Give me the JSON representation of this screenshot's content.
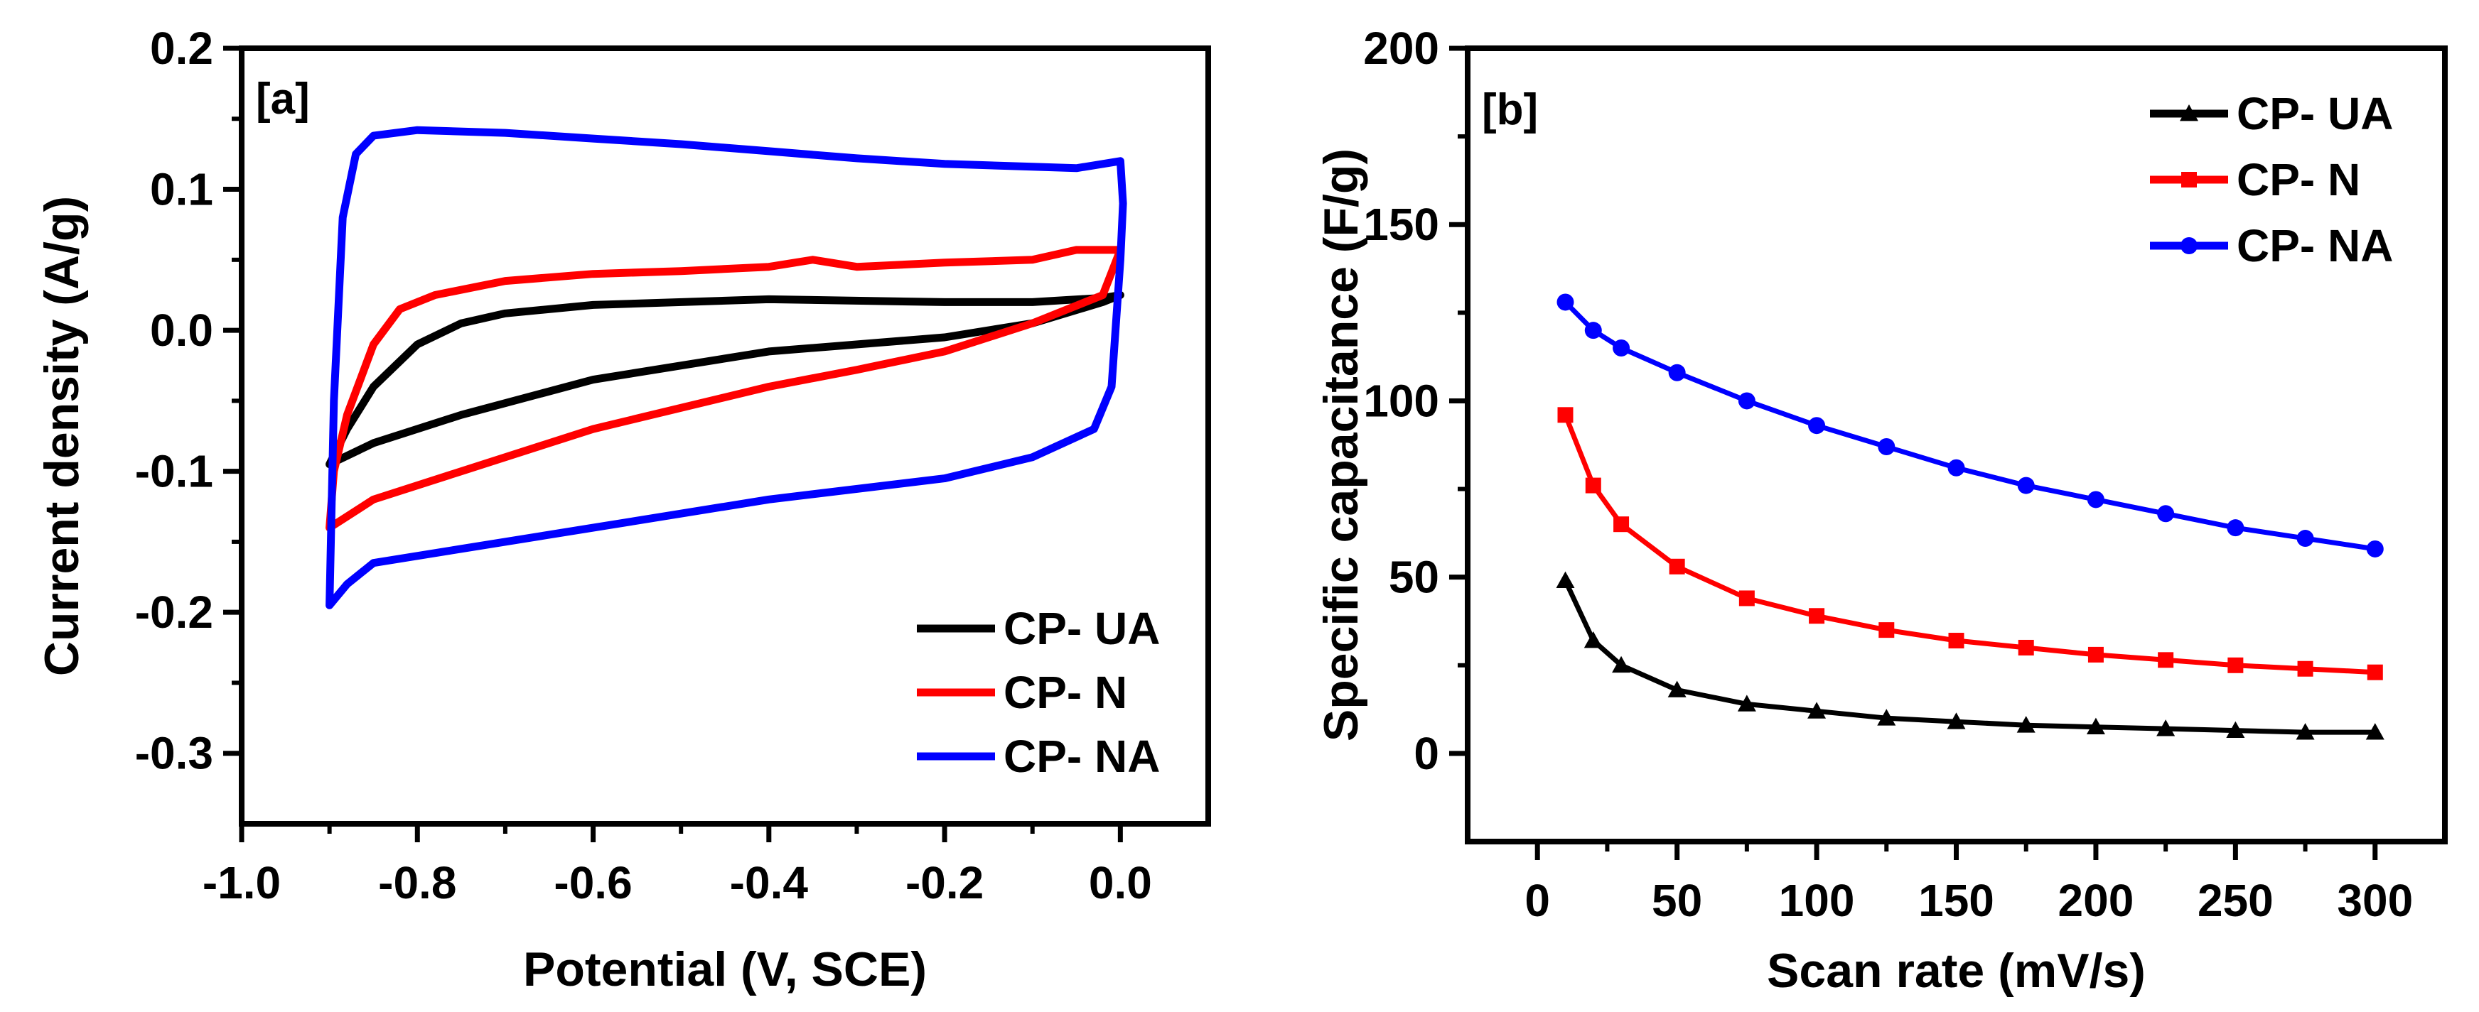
{
  "chart_data": [
    {
      "type": "line",
      "panel_label": "[a]",
      "xlabel": "Potential (V, SCE)",
      "ylabel": "Current density (A/g)",
      "xlim": [
        -1.0,
        0.1
      ],
      "ylim": [
        -0.35,
        0.2
      ],
      "xticks": [
        -1.0,
        -0.8,
        -0.6,
        -0.4,
        -0.2,
        0.0
      ],
      "xtick_labels": [
        "-1.0",
        "-0.8",
        "-0.6",
        "-0.4",
        "-0.2",
        "0.0"
      ],
      "yticks": [
        -0.3,
        -0.2,
        -0.1,
        0.0,
        0.1,
        0.2
      ],
      "ytick_labels": [
        "-0.3",
        "-0.2",
        "-0.1",
        "0.0",
        "0.1",
        "0.2"
      ],
      "legend_position": "bottom-right",
      "series": [
        {
          "name": "CP- UA",
          "color": "#000000",
          "points": [
            [
              -0.9,
              -0.095
            ],
            [
              -0.88,
              -0.07
            ],
            [
              -0.85,
              -0.04
            ],
            [
              -0.8,
              -0.01
            ],
            [
              -0.75,
              0.005
            ],
            [
              -0.7,
              0.012
            ],
            [
              -0.6,
              0.018
            ],
            [
              -0.4,
              0.022
            ],
            [
              -0.2,
              0.02
            ],
            [
              -0.1,
              0.02
            ],
            [
              -0.02,
              0.023
            ],
            [
              0.0,
              0.025
            ],
            [
              -0.02,
              0.02
            ],
            [
              -0.1,
              0.005
            ],
            [
              -0.2,
              -0.005
            ],
            [
              -0.4,
              -0.015
            ],
            [
              -0.6,
              -0.035
            ],
            [
              -0.75,
              -0.06
            ],
            [
              -0.85,
              -0.08
            ],
            [
              -0.9,
              -0.095
            ]
          ]
        },
        {
          "name": "CP- N",
          "color": "#ff0000",
          "points": [
            [
              -0.9,
              -0.14
            ],
            [
              -0.895,
              -0.1
            ],
            [
              -0.88,
              -0.06
            ],
            [
              -0.85,
              -0.01
            ],
            [
              -0.82,
              0.015
            ],
            [
              -0.78,
              0.025
            ],
            [
              -0.7,
              0.035
            ],
            [
              -0.6,
              0.04
            ],
            [
              -0.5,
              0.042
            ],
            [
              -0.4,
              0.045
            ],
            [
              -0.35,
              0.05
            ],
            [
              -0.3,
              0.045
            ],
            [
              -0.2,
              0.048
            ],
            [
              -0.1,
              0.05
            ],
            [
              -0.05,
              0.057
            ],
            [
              0.0,
              0.057
            ],
            [
              -0.02,
              0.025
            ],
            [
              -0.1,
              0.005
            ],
            [
              -0.2,
              -0.015
            ],
            [
              -0.3,
              -0.028
            ],
            [
              -0.4,
              -0.04
            ],
            [
              -0.6,
              -0.07
            ],
            [
              -0.75,
              -0.1
            ],
            [
              -0.85,
              -0.12
            ],
            [
              -0.9,
              -0.14
            ]
          ]
        },
        {
          "name": "CP- NA",
          "color": "#0000ff",
          "points": [
            [
              -0.9,
              -0.195
            ],
            [
              -0.895,
              -0.05
            ],
            [
              -0.885,
              0.08
            ],
            [
              -0.87,
              0.125
            ],
            [
              -0.85,
              0.138
            ],
            [
              -0.8,
              0.142
            ],
            [
              -0.7,
              0.14
            ],
            [
              -0.6,
              0.136
            ],
            [
              -0.5,
              0.132
            ],
            [
              -0.4,
              0.127
            ],
            [
              -0.3,
              0.122
            ],
            [
              -0.2,
              0.118
            ],
            [
              -0.1,
              0.116
            ],
            [
              -0.05,
              0.115
            ],
            [
              0.0,
              0.12
            ],
            [
              0.003,
              0.09
            ],
            [
              0.0,
              0.05
            ],
            [
              -0.01,
              -0.04
            ],
            [
              -0.03,
              -0.07
            ],
            [
              -0.1,
              -0.09
            ],
            [
              -0.2,
              -0.105
            ],
            [
              -0.4,
              -0.12
            ],
            [
              -0.6,
              -0.14
            ],
            [
              -0.75,
              -0.155
            ],
            [
              -0.85,
              -0.165
            ],
            [
              -0.88,
              -0.18
            ],
            [
              -0.9,
              -0.195
            ]
          ]
        }
      ]
    },
    {
      "type": "line",
      "panel_label": "[b]",
      "xlabel": "Scan rate (mV/s)",
      "ylabel": "Specific capacitance (F/g)",
      "xlim": [
        -25,
        325
      ],
      "ylim": [
        -25,
        200
      ],
      "xticks": [
        0,
        50,
        100,
        150,
        200,
        250,
        300
      ],
      "xtick_labels": [
        "0",
        "50",
        "100",
        "150",
        "200",
        "250",
        "300"
      ],
      "yticks": [
        0,
        50,
        100,
        150,
        200
      ],
      "ytick_labels": [
        "0",
        "50",
        "100",
        "150",
        "200"
      ],
      "legend_position": "top-right",
      "x": [
        10,
        20,
        30,
        50,
        75,
        100,
        125,
        150,
        175,
        200,
        225,
        250,
        275,
        300
      ],
      "series": [
        {
          "name": "CP- UA",
          "color": "#000000",
          "marker": "triangle",
          "values": [
            49,
            32,
            25,
            18,
            14,
            12,
            10,
            9,
            8,
            7.5,
            7,
            6.5,
            6,
            6
          ]
        },
        {
          "name": "CP- N",
          "color": "#ff0000",
          "marker": "square",
          "values": [
            96,
            76,
            65,
            53,
            44,
            39,
            35,
            32,
            30,
            28,
            26.5,
            25,
            24,
            23
          ]
        },
        {
          "name": "CP- NA",
          "color": "#0000ff",
          "marker": "circle",
          "values": [
            128,
            120,
            115,
            108,
            100,
            93,
            87,
            81,
            76,
            72,
            68,
            64,
            61,
            58
          ]
        }
      ]
    }
  ]
}
